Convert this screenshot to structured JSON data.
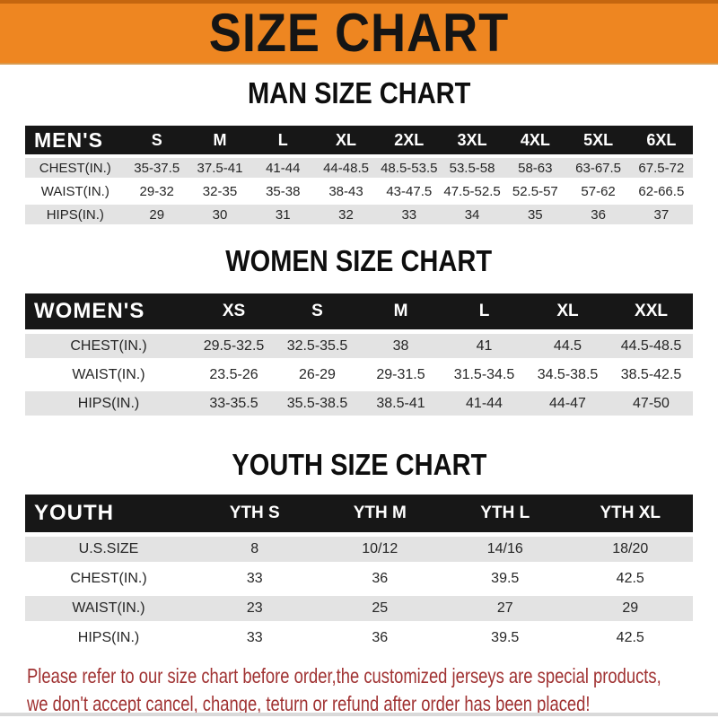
{
  "banner": {
    "title": "SIZE CHART"
  },
  "sections": [
    {
      "heading": "MAN SIZE CHART",
      "table": {
        "header_label": "MEN'S",
        "columns": [
          "S",
          "M",
          "L",
          "XL",
          "2XL",
          "3XL",
          "4XL",
          "5XL",
          "6XL"
        ],
        "rows": [
          {
            "label": "CHEST(IN.)",
            "values": [
              "35-37.5",
              "37.5-41",
              "41-44",
              "44-48.5",
              "48.5-53.5",
              "53.5-58",
              "58-63",
              "63-67.5",
              "67.5-72"
            ]
          },
          {
            "label": "WAIST(IN.)",
            "values": [
              "29-32",
              "32-35",
              "35-38",
              "38-43",
              "43-47.5",
              "47.5-52.5",
              "52.5-57",
              "57-62",
              "62-66.5"
            ]
          },
          {
            "label": "HIPS(IN.)",
            "values": [
              "29",
              "30",
              "31",
              "32",
              "33",
              "34",
              "35",
              "36",
              "37"
            ]
          }
        ]
      }
    },
    {
      "heading": "WOMEN SIZE CHART",
      "table": {
        "header_label": "WOMEN'S",
        "columns": [
          "XS",
          "S",
          "M",
          "L",
          "XL",
          "XXL"
        ],
        "rows": [
          {
            "label": "CHEST(IN.)",
            "values": [
              "29.5-32.5",
              "32.5-35.5",
              "38",
              "41",
              "44.5",
              "44.5-48.5"
            ]
          },
          {
            "label": "WAIST(IN.)",
            "values": [
              "23.5-26",
              "26-29",
              "29-31.5",
              "31.5-34.5",
              "34.5-38.5",
              "38.5-42.5"
            ]
          },
          {
            "label": "HIPS(IN.)",
            "values": [
              "33-35.5",
              "35.5-38.5",
              "38.5-41",
              "41-44",
              "44-47",
              "47-50"
            ]
          }
        ]
      }
    },
    {
      "heading": "YOUTH SIZE CHART",
      "table": {
        "header_label": "YOUTH",
        "columns": [
          "YTH S",
          "YTH M",
          "YTH L",
          "YTH XL"
        ],
        "rows": [
          {
            "label": "U.S.SIZE",
            "values": [
              "8",
              "10/12",
              "14/16",
              "18/20"
            ]
          },
          {
            "label": "CHEST(IN.)",
            "values": [
              "33",
              "36",
              "39.5",
              "42.5"
            ]
          },
          {
            "label": "WAIST(IN.)",
            "values": [
              "23",
              "25",
              "27",
              "29"
            ]
          },
          {
            "label": "HIPS(IN.)",
            "values": [
              "33",
              "36",
              "39.5",
              "42.5"
            ]
          }
        ]
      }
    }
  ],
  "notice": {
    "line1": "Please refer to our size chart before order,the customized jerseys are special products,",
    "line2": "we don't accept cancel, change, teturn or refund after order has been placed!"
  },
  "colors": {
    "banner_bg": "#EE8621",
    "table_header_bg": "#171717",
    "stripe_bg": "#E3E3E3",
    "notice_text": "#A03232"
  }
}
